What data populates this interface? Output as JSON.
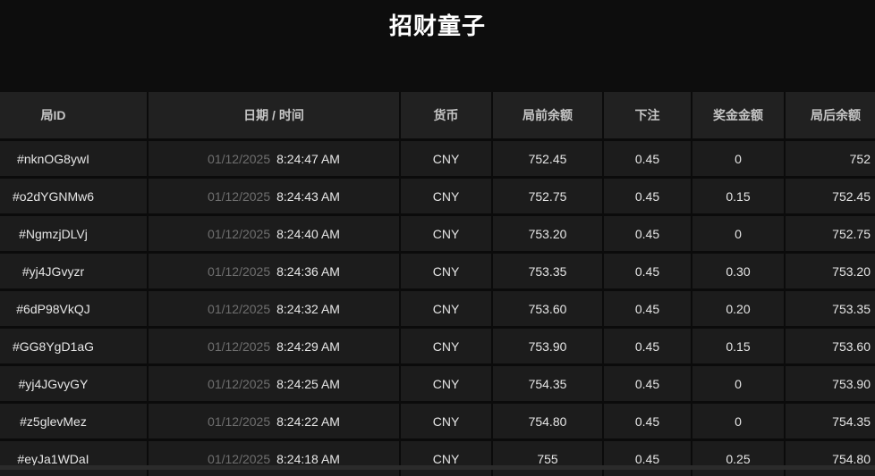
{
  "title": "招财童子",
  "table": {
    "headers": {
      "round_id": "局ID",
      "datetime": "日期 / 时间",
      "currency": "货币",
      "balance_before": "局前余额",
      "bet": "下注",
      "win_amount": "奖金金额",
      "balance_after": "局后余额"
    },
    "rows": [
      {
        "id": "#nknOG8ywI",
        "date": "01/12/2025",
        "time": "8:24:47 AM",
        "currency": "CNY",
        "balance_before": "752.45",
        "bet": "0.45",
        "win": "0",
        "balance_after": "752"
      },
      {
        "id": "#o2dYGNMw6",
        "date": "01/12/2025",
        "time": "8:24:43 AM",
        "currency": "CNY",
        "balance_before": "752.75",
        "bet": "0.45",
        "win": "0.15",
        "balance_after": "752.45"
      },
      {
        "id": "#NgmzjDLVj",
        "date": "01/12/2025",
        "time": "8:24:40 AM",
        "currency": "CNY",
        "balance_before": "753.20",
        "bet": "0.45",
        "win": "0",
        "balance_after": "752.75"
      },
      {
        "id": "#yj4JGvyzr",
        "date": "01/12/2025",
        "time": "8:24:36 AM",
        "currency": "CNY",
        "balance_before": "753.35",
        "bet": "0.45",
        "win": "0.30",
        "balance_after": "753.20"
      },
      {
        "id": "#6dP98VkQJ",
        "date": "01/12/2025",
        "time": "8:24:32 AM",
        "currency": "CNY",
        "balance_before": "753.60",
        "bet": "0.45",
        "win": "0.20",
        "balance_after": "753.35"
      },
      {
        "id": "#GG8YgD1aG",
        "date": "01/12/2025",
        "time": "8:24:29 AM",
        "currency": "CNY",
        "balance_before": "753.90",
        "bet": "0.45",
        "win": "0.15",
        "balance_after": "753.60"
      },
      {
        "id": "#yj4JGvyGY",
        "date": "01/12/2025",
        "time": "8:24:25 AM",
        "currency": "CNY",
        "balance_before": "754.35",
        "bet": "0.45",
        "win": "0",
        "balance_after": "753.90"
      },
      {
        "id": "#z5glevMez",
        "date": "01/12/2025",
        "time": "8:24:22 AM",
        "currency": "CNY",
        "balance_before": "754.80",
        "bet": "0.45",
        "win": "0",
        "balance_after": "754.35"
      },
      {
        "id": "#eyJa1WDaI",
        "date": "01/12/2025",
        "time": "8:24:18 AM",
        "currency": "CNY",
        "balance_before": "755",
        "bet": "0.45",
        "win": "0.25",
        "balance_after": "754.80"
      }
    ]
  },
  "colors": {
    "page_background": "#0d0d0d",
    "header_row_background": "#212121",
    "row_background": "#1c1c1c",
    "divider": "#0b0b0b",
    "title_text": "#ffffff",
    "header_text": "#c6c6c6",
    "cell_text": "#e6e6e6",
    "date_dim_text": "#6f6f6f",
    "partial_row_strip": "#2b2b2b"
  }
}
